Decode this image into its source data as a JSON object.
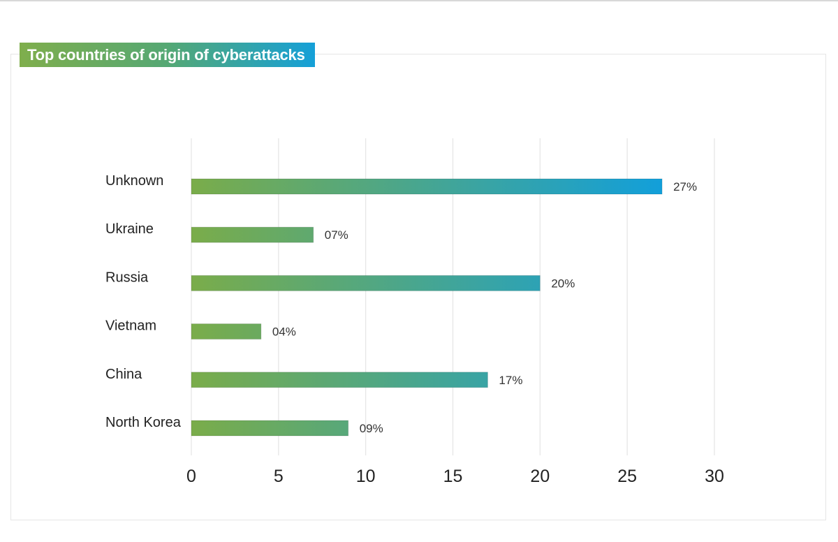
{
  "chart_data": {
    "type": "bar",
    "orientation": "horizontal",
    "title": "Top countries of origin of cyberattacks",
    "categories": [
      "Unknown",
      "Ukraine",
      "Russia",
      "Vietnam",
      "China",
      "North Korea"
    ],
    "values": [
      27,
      7,
      20,
      4,
      17,
      9
    ],
    "value_labels": [
      "27%",
      "07%",
      "20%",
      "04%",
      "17%",
      "09%"
    ],
    "xlim": [
      0,
      30
    ],
    "xticks": [
      "0",
      "5",
      "10",
      "15",
      "20",
      "25",
      "30"
    ],
    "grid": true,
    "bar_gradient": {
      "start": "#7aac4a",
      "end": "#129fda"
    }
  }
}
